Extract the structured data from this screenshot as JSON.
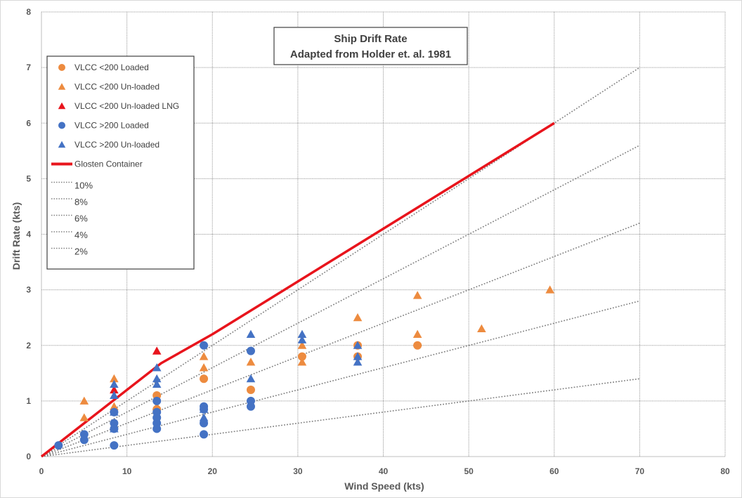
{
  "chart_data": {
    "type": "scatter",
    "title": "Ship Drift Rate",
    "subtitle": "Adapted from Holder et. al. 1981",
    "xlabel": "Wind Speed (kts)",
    "ylabel": "Drift Rate (kts)",
    "xlim": [
      0,
      80
    ],
    "ylim": [
      0,
      8
    ],
    "x_ticks": [
      "0",
      "10",
      "20",
      "30",
      "40",
      "50",
      "60",
      "70",
      "80"
    ],
    "y_ticks": [
      "0",
      "1",
      "2",
      "3",
      "4",
      "5",
      "6",
      "7",
      "8"
    ],
    "grid": "horizontal and vertical dotted",
    "legend_position": "top-left",
    "series": [
      {
        "name": "VLCC <200 Loaded",
        "marker": "circle",
        "color": "#ed8b3f",
        "points": [
          [
            13.5,
            1.1
          ],
          [
            13.5,
            0.85
          ],
          [
            19,
            1.4
          ],
          [
            24.5,
            1.2
          ],
          [
            30.5,
            1.8
          ],
          [
            37,
            2.0
          ],
          [
            37,
            1.8
          ],
          [
            44,
            2.0
          ]
        ]
      },
      {
        "name": "VLCC <200 Un-loaded",
        "marker": "triangle",
        "color": "#ed8b3f",
        "points": [
          [
            5,
            1.0
          ],
          [
            5,
            0.7
          ],
          [
            8.5,
            1.4
          ],
          [
            8.5,
            0.9
          ],
          [
            13.5,
            0.9
          ],
          [
            19,
            1.8
          ],
          [
            19,
            1.6
          ],
          [
            24.5,
            1.7
          ],
          [
            30.5,
            2.0
          ],
          [
            30.5,
            1.7
          ],
          [
            37,
            2.5
          ],
          [
            44,
            2.9
          ],
          [
            44,
            2.2
          ],
          [
            51.5,
            2.3
          ],
          [
            59.5,
            3.0
          ]
        ]
      },
      {
        "name": "VLCC <200 Un-loaded LNG",
        "marker": "triangle",
        "color": "#e8141c",
        "points": [
          [
            8.5,
            1.2
          ],
          [
            13.5,
            1.9
          ]
        ]
      },
      {
        "name": "VLCC >200 Loaded",
        "marker": "circle",
        "color": "#4472c4",
        "points": [
          [
            2,
            0.2
          ],
          [
            5,
            0.4
          ],
          [
            5,
            0.3
          ],
          [
            8.5,
            0.8
          ],
          [
            8.5,
            0.6
          ],
          [
            8.5,
            0.5
          ],
          [
            8.5,
            0.2
          ],
          [
            13.5,
            1.0
          ],
          [
            13.5,
            0.8
          ],
          [
            13.5,
            0.7
          ],
          [
            13.5,
            0.6
          ],
          [
            13.5,
            0.5
          ],
          [
            19,
            2.0
          ],
          [
            19,
            0.9
          ],
          [
            19,
            0.85
          ],
          [
            19,
            0.6
          ],
          [
            19,
            0.4
          ],
          [
            24.5,
            1.9
          ],
          [
            24.5,
            1.0
          ],
          [
            24.5,
            0.9
          ]
        ]
      },
      {
        "name": "VLCC >200 Un-loaded",
        "marker": "triangle",
        "color": "#4472c4",
        "points": [
          [
            8.5,
            1.3
          ],
          [
            8.5,
            1.1
          ],
          [
            8.5,
            0.8
          ],
          [
            8.5,
            0.5
          ],
          [
            13.5,
            1.6
          ],
          [
            13.5,
            1.4
          ],
          [
            13.5,
            1.3
          ],
          [
            19,
            0.85
          ],
          [
            19,
            0.7
          ],
          [
            24.5,
            2.2
          ],
          [
            24.5,
            1.4
          ],
          [
            30.5,
            2.2
          ],
          [
            30.5,
            2.1
          ],
          [
            37,
            2.0
          ],
          [
            37,
            1.8
          ],
          [
            37,
            1.7
          ]
        ]
      }
    ],
    "lines": [
      {
        "name": "Glosten Container",
        "style": "solid",
        "color": "#e8141c",
        "points": [
          [
            0,
            0
          ],
          [
            14,
            1.68
          ],
          [
            20,
            2.2
          ],
          [
            60,
            6.0
          ]
        ]
      },
      {
        "name": "10%",
        "style": "dotted",
        "color": "#808080",
        "points": [
          [
            0,
            0
          ],
          [
            70,
            7.0
          ]
        ]
      },
      {
        "name": "8%",
        "style": "dotted",
        "color": "#808080",
        "points": [
          [
            0,
            0
          ],
          [
            70,
            5.6
          ]
        ]
      },
      {
        "name": "6%",
        "style": "dotted",
        "color": "#808080",
        "points": [
          [
            0,
            0
          ],
          [
            70,
            4.2
          ]
        ]
      },
      {
        "name": "4%",
        "style": "dotted",
        "color": "#808080",
        "points": [
          [
            0,
            0
          ],
          [
            70,
            2.8
          ]
        ]
      },
      {
        "name": "2%",
        "style": "dotted",
        "color": "#808080",
        "points": [
          [
            0,
            0
          ],
          [
            70,
            1.4
          ]
        ]
      }
    ]
  }
}
